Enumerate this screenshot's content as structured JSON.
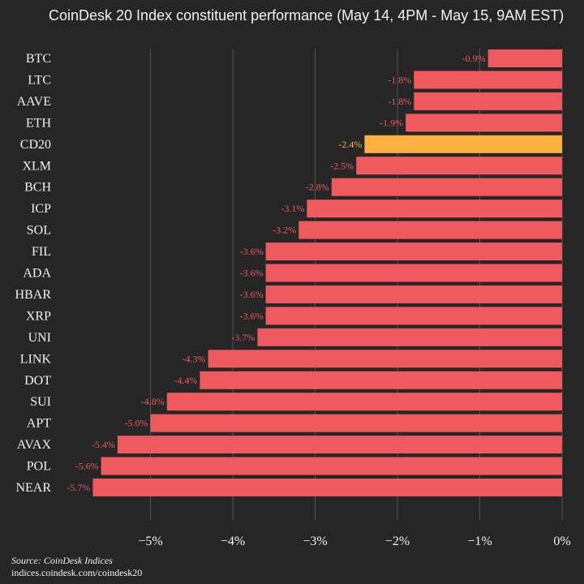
{
  "chart_data": {
    "type": "bar",
    "orientation": "horizontal",
    "title": "CoinDesk 20 Index constituent performance (May 14, 4PM - May 15, 9AM EST)",
    "categories": [
      "BTC",
      "LTC",
      "AAVE",
      "ETH",
      "CD20",
      "XLM",
      "BCH",
      "ICP",
      "SOL",
      "FIL",
      "ADA",
      "HBAR",
      "XRP",
      "UNI",
      "LINK",
      "DOT",
      "SUI",
      "APT",
      "AVAX",
      "POL",
      "NEAR"
    ],
    "values": [
      -0.9,
      -1.8,
      -1.8,
      -1.9,
      -2.4,
      -2.5,
      -2.8,
      -3.1,
      -3.2,
      -3.6,
      -3.6,
      -3.6,
      -3.6,
      -3.7,
      -4.3,
      -4.4,
      -4.8,
      -5.0,
      -5.4,
      -5.6,
      -5.7
    ],
    "value_labels": [
      "-0.9%",
      "-1.8%",
      "-1.8%",
      "-1.9%",
      "-2.4%",
      "-2.5%",
      "-2.8%",
      "-3.1%",
      "-3.2%",
      "-3.6%",
      "-3.6%",
      "-3.6%",
      "-3.6%",
      "-3.7%",
      "-4.3%",
      "-4.4%",
      "-4.8%",
      "-5.0%",
      "-5.4%",
      "-5.6%",
      "-5.7%"
    ],
    "highlight_category": "CD20",
    "xticks": [
      -5,
      -4,
      -3,
      -2,
      -1,
      0
    ],
    "xtick_labels": [
      "−5%",
      "−4%",
      "−3%",
      "−2%",
      "−1%",
      "0%"
    ],
    "xlim": [
      -6.2,
      0
    ],
    "grid": true,
    "colors": {
      "background": "#262626",
      "bar": "#ef5a5f",
      "highlight": "#fbb040",
      "label": "#ef5a5f",
      "highlight_label": "#fbb040",
      "grid": "#545454",
      "text": "#f2f2f2"
    }
  },
  "footer": {
    "source": "Source: CoinDesk Indices",
    "url": "indices.coindesk.com/coindesk20"
  }
}
